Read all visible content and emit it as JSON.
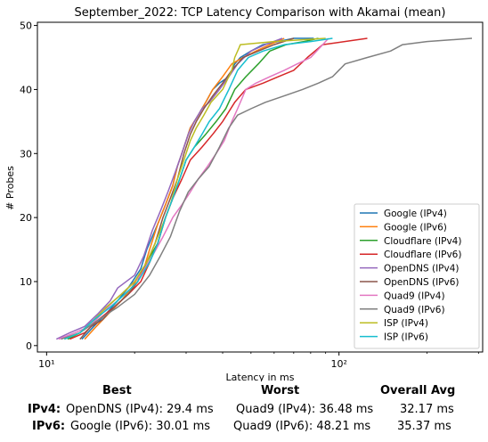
{
  "chart_data": {
    "type": "line",
    "title": "September_2022: TCP Latency Comparison with Akamai (mean)",
    "xlabel": "Latency in ms",
    "ylabel": "# Probes",
    "xscale": "log",
    "xlim": [
      9.3,
      310
    ],
    "ylim": [
      -1,
      50.5
    ],
    "xticks": [
      {
        "value": 10,
        "label": "10¹"
      },
      {
        "value": 100,
        "label": "10²"
      }
    ],
    "yticks": [
      0,
      10,
      20,
      30,
      40,
      50
    ],
    "grid": false,
    "legend_position": "lower-right",
    "series": [
      {
        "name": "Google (IPv4)",
        "color": "#1f77b4",
        "points": [
          [
            13.2,
            1
          ],
          [
            14.5,
            3
          ],
          [
            16,
            5
          ],
          [
            17.5,
            7
          ],
          [
            19,
            9
          ],
          [
            21,
            12
          ],
          [
            22,
            15
          ],
          [
            24,
            19
          ],
          [
            25.5,
            22
          ],
          [
            27,
            25
          ],
          [
            28,
            28
          ],
          [
            29.5,
            31
          ],
          [
            31,
            34
          ],
          [
            33,
            36
          ],
          [
            35,
            38
          ],
          [
            37,
            40
          ],
          [
            39,
            41
          ],
          [
            42,
            42
          ],
          [
            44,
            44
          ],
          [
            46,
            45
          ],
          [
            50,
            46
          ],
          [
            55,
            47
          ],
          [
            62,
            47.5
          ],
          [
            70,
            48
          ],
          [
            82,
            48
          ]
        ]
      },
      {
        "name": "Google (IPv6)",
        "color": "#ff7f0e",
        "points": [
          [
            13.5,
            1
          ],
          [
            14.8,
            3
          ],
          [
            16.3,
            5
          ],
          [
            18,
            7
          ],
          [
            19.5,
            9
          ],
          [
            21.5,
            12
          ],
          [
            22.5,
            15
          ],
          [
            24,
            19
          ],
          [
            25.5,
            22
          ],
          [
            27,
            25
          ],
          [
            28,
            28
          ],
          [
            29.5,
            31
          ],
          [
            31,
            34
          ],
          [
            33,
            36
          ],
          [
            35,
            38
          ],
          [
            37,
            40
          ],
          [
            40,
            42
          ],
          [
            43,
            44
          ],
          [
            47,
            45
          ],
          [
            52,
            46
          ],
          [
            58,
            47
          ],
          [
            65,
            48
          ]
        ]
      },
      {
        "name": "Cloudflare (IPv4)",
        "color": "#2ca02c",
        "points": [
          [
            11.8,
            1
          ],
          [
            13,
            2
          ],
          [
            14.5,
            4
          ],
          [
            16,
            6
          ],
          [
            18,
            8
          ],
          [
            20,
            10
          ],
          [
            22,
            13
          ],
          [
            24,
            16
          ],
          [
            25.5,
            20
          ],
          [
            27,
            23
          ],
          [
            28.5,
            26
          ],
          [
            30,
            29
          ],
          [
            32,
            31
          ],
          [
            35,
            33
          ],
          [
            38,
            35
          ],
          [
            41,
            37
          ],
          [
            44,
            40
          ],
          [
            48,
            42
          ],
          [
            53,
            44
          ],
          [
            58,
            46
          ],
          [
            66,
            47
          ],
          [
            76,
            47.5
          ],
          [
            85,
            48
          ]
        ]
      },
      {
        "name": "Cloudflare (IPv6)",
        "color": "#d62728",
        "points": [
          [
            12,
            1
          ],
          [
            13.5,
            2
          ],
          [
            15,
            4
          ],
          [
            17,
            6
          ],
          [
            19,
            8
          ],
          [
            21,
            10
          ],
          [
            22.5,
            13
          ],
          [
            24,
            16
          ],
          [
            25.5,
            20
          ],
          [
            27,
            23
          ],
          [
            29,
            26
          ],
          [
            31,
            29
          ],
          [
            34,
            31
          ],
          [
            37,
            33
          ],
          [
            40,
            35
          ],
          [
            44,
            38
          ],
          [
            48,
            40
          ],
          [
            55,
            41
          ],
          [
            62,
            42
          ],
          [
            70,
            43
          ],
          [
            78,
            45
          ],
          [
            88,
            47
          ],
          [
            125,
            48
          ]
        ]
      },
      {
        "name": "OpenDNS (IPv4)",
        "color": "#9467bd",
        "points": [
          [
            10.8,
            1
          ],
          [
            12,
            2
          ],
          [
            13.5,
            3
          ],
          [
            15,
            5
          ],
          [
            16.5,
            7
          ],
          [
            17.5,
            9
          ],
          [
            20,
            11
          ],
          [
            21.5,
            14
          ],
          [
            23,
            18
          ],
          [
            24.5,
            21
          ],
          [
            26,
            24
          ],
          [
            27.5,
            27
          ],
          [
            29,
            30
          ],
          [
            30.5,
            33
          ],
          [
            32,
            35
          ],
          [
            34,
            37
          ],
          [
            36,
            38
          ],
          [
            39,
            40
          ],
          [
            42,
            42
          ],
          [
            45,
            44
          ],
          [
            50,
            46
          ],
          [
            56,
            47
          ],
          [
            64,
            48
          ]
        ]
      },
      {
        "name": "OpenDNS (IPv6)",
        "color": "#8c564b",
        "points": [
          [
            13,
            1
          ],
          [
            14.2,
            3
          ],
          [
            15.5,
            4
          ],
          [
            17,
            6
          ],
          [
            19,
            8
          ],
          [
            20.5,
            10
          ],
          [
            22,
            13
          ],
          [
            23.5,
            16
          ],
          [
            25,
            20
          ],
          [
            26.5,
            23
          ],
          [
            28,
            26
          ],
          [
            29.5,
            30
          ],
          [
            31,
            33
          ],
          [
            32.5,
            35
          ],
          [
            34.5,
            37
          ],
          [
            37,
            39
          ],
          [
            40,
            41
          ],
          [
            43,
            43
          ],
          [
            47,
            45
          ],
          [
            53,
            46
          ],
          [
            60,
            47
          ],
          [
            70,
            48
          ]
        ]
      },
      {
        "name": "Quad9 (IPv4)",
        "color": "#e377c2",
        "points": [
          [
            11,
            1
          ],
          [
            12.5,
            2
          ],
          [
            14,
            3
          ],
          [
            15.5,
            5
          ],
          [
            17,
            7
          ],
          [
            19,
            9
          ],
          [
            21,
            11
          ],
          [
            23,
            14
          ],
          [
            25,
            17
          ],
          [
            27,
            20
          ],
          [
            29,
            22
          ],
          [
            31,
            24
          ],
          [
            33,
            26
          ],
          [
            35.5,
            28
          ],
          [
            38,
            30
          ],
          [
            40.5,
            32
          ],
          [
            43,
            35
          ],
          [
            45,
            37
          ],
          [
            48,
            40
          ],
          [
            52,
            41
          ],
          [
            58,
            42
          ],
          [
            65,
            43
          ],
          [
            72,
            44
          ],
          [
            80,
            45
          ],
          [
            88,
            47
          ],
          [
            92,
            48
          ]
        ]
      },
      {
        "name": "Quad9 (IPv6)",
        "color": "#7f7f7f",
        "points": [
          [
            11.2,
            1
          ],
          [
            13,
            2
          ],
          [
            15,
            4
          ],
          [
            17.5,
            6
          ],
          [
            20,
            8
          ],
          [
            22.5,
            11
          ],
          [
            24.5,
            14
          ],
          [
            26.5,
            17
          ],
          [
            28.5,
            21
          ],
          [
            30.5,
            24
          ],
          [
            33,
            26
          ],
          [
            36,
            28
          ],
          [
            39,
            31
          ],
          [
            42,
            34
          ],
          [
            45,
            36
          ],
          [
            50,
            37
          ],
          [
            56,
            38
          ],
          [
            65,
            39
          ],
          [
            75,
            40
          ],
          [
            85,
            41
          ],
          [
            95,
            42
          ],
          [
            105,
            44
          ],
          [
            125,
            45
          ],
          [
            150,
            46
          ],
          [
            165,
            47
          ],
          [
            200,
            47.5
          ],
          [
            285,
            48
          ]
        ]
      },
      {
        "name": "ISP (IPv4)",
        "color": "#bcbd22",
        "points": [
          [
            11.5,
            1
          ],
          [
            13,
            2
          ],
          [
            14.5,
            4
          ],
          [
            16,
            6
          ],
          [
            18,
            8
          ],
          [
            20,
            10
          ],
          [
            22,
            13
          ],
          [
            23.5,
            16
          ],
          [
            25,
            19
          ],
          [
            26.5,
            22
          ],
          [
            28,
            26
          ],
          [
            29.5,
            29
          ],
          [
            31,
            32
          ],
          [
            32.5,
            34
          ],
          [
            34.5,
            36
          ],
          [
            36.5,
            38
          ],
          [
            40,
            40
          ],
          [
            43,
            43
          ],
          [
            44,
            45
          ],
          [
            45.5,
            46.5
          ],
          [
            46,
            47
          ],
          [
            60,
            47.5
          ],
          [
            90,
            48
          ]
        ]
      },
      {
        "name": "ISP (IPv6)",
        "color": "#17becf",
        "points": [
          [
            11.5,
            1
          ],
          [
            13,
            2
          ],
          [
            14.5,
            4
          ],
          [
            16.5,
            6
          ],
          [
            18.5,
            8
          ],
          [
            20.5,
            10
          ],
          [
            22.5,
            13
          ],
          [
            24,
            16
          ],
          [
            25.5,
            20
          ],
          [
            27,
            23
          ],
          [
            28.5,
            26
          ],
          [
            30,
            29
          ],
          [
            32,
            31
          ],
          [
            34,
            33
          ],
          [
            36,
            35
          ],
          [
            39,
            37
          ],
          [
            42,
            40
          ],
          [
            45,
            43
          ],
          [
            49,
            45
          ],
          [
            55,
            46
          ],
          [
            65,
            47
          ],
          [
            80,
            47.5
          ],
          [
            95,
            48
          ]
        ]
      }
    ]
  },
  "summary": {
    "headers": {
      "best": "Best",
      "worst": "Worst",
      "avg": "Overall Avg"
    },
    "rows": [
      {
        "label": "IPv4:",
        "best": "OpenDNS (IPv4): 29.4 ms",
        "worst": "Quad9 (IPv4): 36.48 ms",
        "avg": "32.17 ms"
      },
      {
        "label": "IPv6:",
        "best": "Google (IPv6): 30.01 ms",
        "worst": "Quad9 (IPv6): 48.21 ms",
        "avg": "35.37 ms"
      }
    ]
  }
}
